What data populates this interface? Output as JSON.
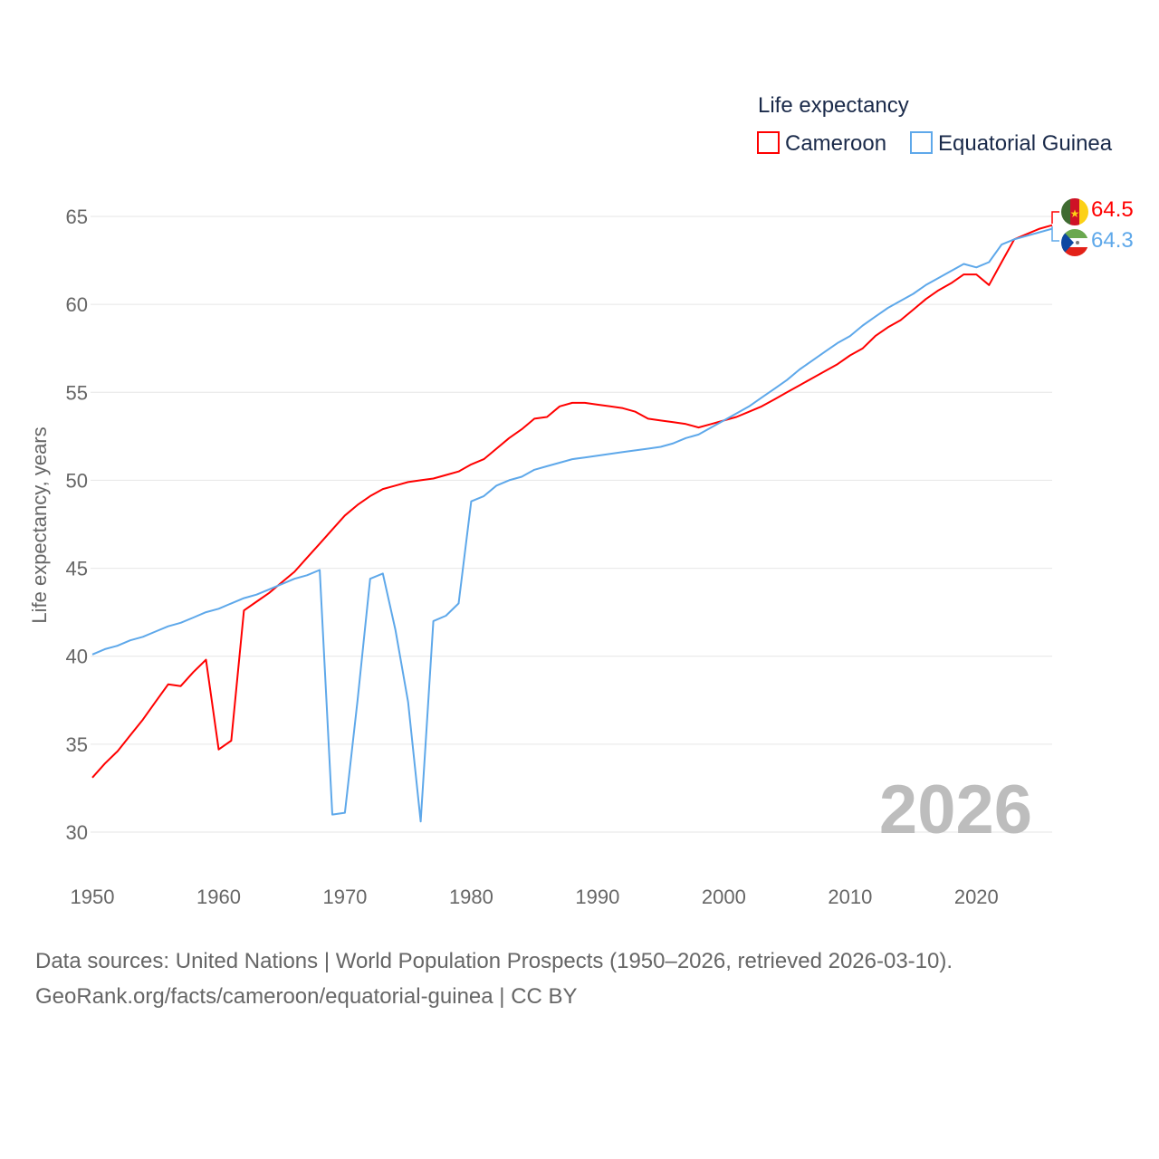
{
  "chart_data": {
    "type": "line",
    "title": "Life expectancy",
    "ylabel": "Life expectancy, years",
    "xlabel": "",
    "xlim": [
      1950,
      2026
    ],
    "ylim": [
      30,
      65
    ],
    "yticks": [
      "30",
      "35",
      "40",
      "45",
      "50",
      "55",
      "60",
      "65"
    ],
    "xticks": [
      "1950",
      "1960",
      "1970",
      "1980",
      "1990",
      "2000",
      "2010",
      "2020"
    ],
    "grid": true,
    "legend_position": "top-right",
    "year_label": "2026",
    "x": [
      1950,
      1951,
      1952,
      1953,
      1954,
      1955,
      1956,
      1957,
      1958,
      1959,
      1960,
      1961,
      1962,
      1963,
      1964,
      1965,
      1966,
      1967,
      1968,
      1969,
      1970,
      1971,
      1972,
      1973,
      1974,
      1975,
      1976,
      1977,
      1978,
      1979,
      1980,
      1981,
      1982,
      1983,
      1984,
      1985,
      1986,
      1987,
      1988,
      1989,
      1990,
      1991,
      1992,
      1993,
      1994,
      1995,
      1996,
      1997,
      1998,
      1999,
      2000,
      2001,
      2002,
      2003,
      2004,
      2005,
      2006,
      2007,
      2008,
      2009,
      2010,
      2011,
      2012,
      2013,
      2014,
      2015,
      2016,
      2017,
      2018,
      2019,
      2020,
      2021,
      2022,
      2023,
      2024,
      2025,
      2026
    ],
    "series": [
      {
        "name": "Cameroon",
        "color": "#ff0000",
        "end_label": "64.5",
        "values": [
          33.1,
          33.9,
          34.6,
          35.5,
          36.4,
          37.4,
          38.4,
          38.3,
          39.1,
          39.8,
          34.7,
          35.2,
          42.6,
          43.1,
          43.6,
          44.2,
          44.8,
          45.6,
          46.4,
          47.2,
          48.0,
          48.6,
          49.1,
          49.5,
          49.7,
          49.9,
          50.0,
          50.1,
          50.3,
          50.5,
          50.9,
          51.2,
          51.8,
          52.4,
          52.9,
          53.5,
          53.6,
          54.2,
          54.4,
          54.4,
          54.3,
          54.2,
          54.1,
          53.9,
          53.5,
          53.4,
          53.3,
          53.2,
          53.0,
          53.2,
          53.4,
          53.6,
          53.9,
          54.2,
          54.6,
          55.0,
          55.4,
          55.8,
          56.2,
          56.6,
          57.1,
          57.5,
          58.2,
          58.7,
          59.1,
          59.7,
          60.3,
          60.8,
          61.2,
          61.7,
          61.7,
          61.1,
          62.4,
          63.7,
          64.0,
          64.3,
          64.5
        ]
      },
      {
        "name": "Equatorial Guinea",
        "color": "#5ea8ea",
        "end_label": "64.3",
        "values": [
          40.1,
          40.4,
          40.6,
          40.9,
          41.1,
          41.4,
          41.7,
          41.9,
          42.2,
          42.5,
          42.7,
          43.0,
          43.3,
          43.5,
          43.8,
          44.1,
          44.4,
          44.6,
          44.9,
          31.0,
          31.1,
          37.5,
          44.4,
          44.7,
          41.5,
          37.4,
          30.6,
          42.0,
          42.3,
          43.0,
          48.8,
          49.1,
          49.7,
          50.0,
          50.2,
          50.6,
          50.8,
          51.0,
          51.2,
          51.3,
          51.4,
          51.5,
          51.6,
          51.7,
          51.8,
          51.9,
          52.1,
          52.4,
          52.6,
          53.0,
          53.4,
          53.8,
          54.2,
          54.7,
          55.2,
          55.7,
          56.3,
          56.8,
          57.3,
          57.8,
          58.2,
          58.8,
          59.3,
          59.8,
          60.2,
          60.6,
          61.1,
          61.5,
          61.9,
          62.3,
          62.1,
          62.4,
          63.4,
          63.7,
          63.9,
          64.1,
          64.3
        ]
      }
    ]
  },
  "footer": {
    "line1": "Data sources: United Nations | World Population Prospects (1950–2026, retrieved 2026-03-10).",
    "line2": "GeoRank.org/facts/cameroon/equatorial-guinea | CC BY"
  }
}
